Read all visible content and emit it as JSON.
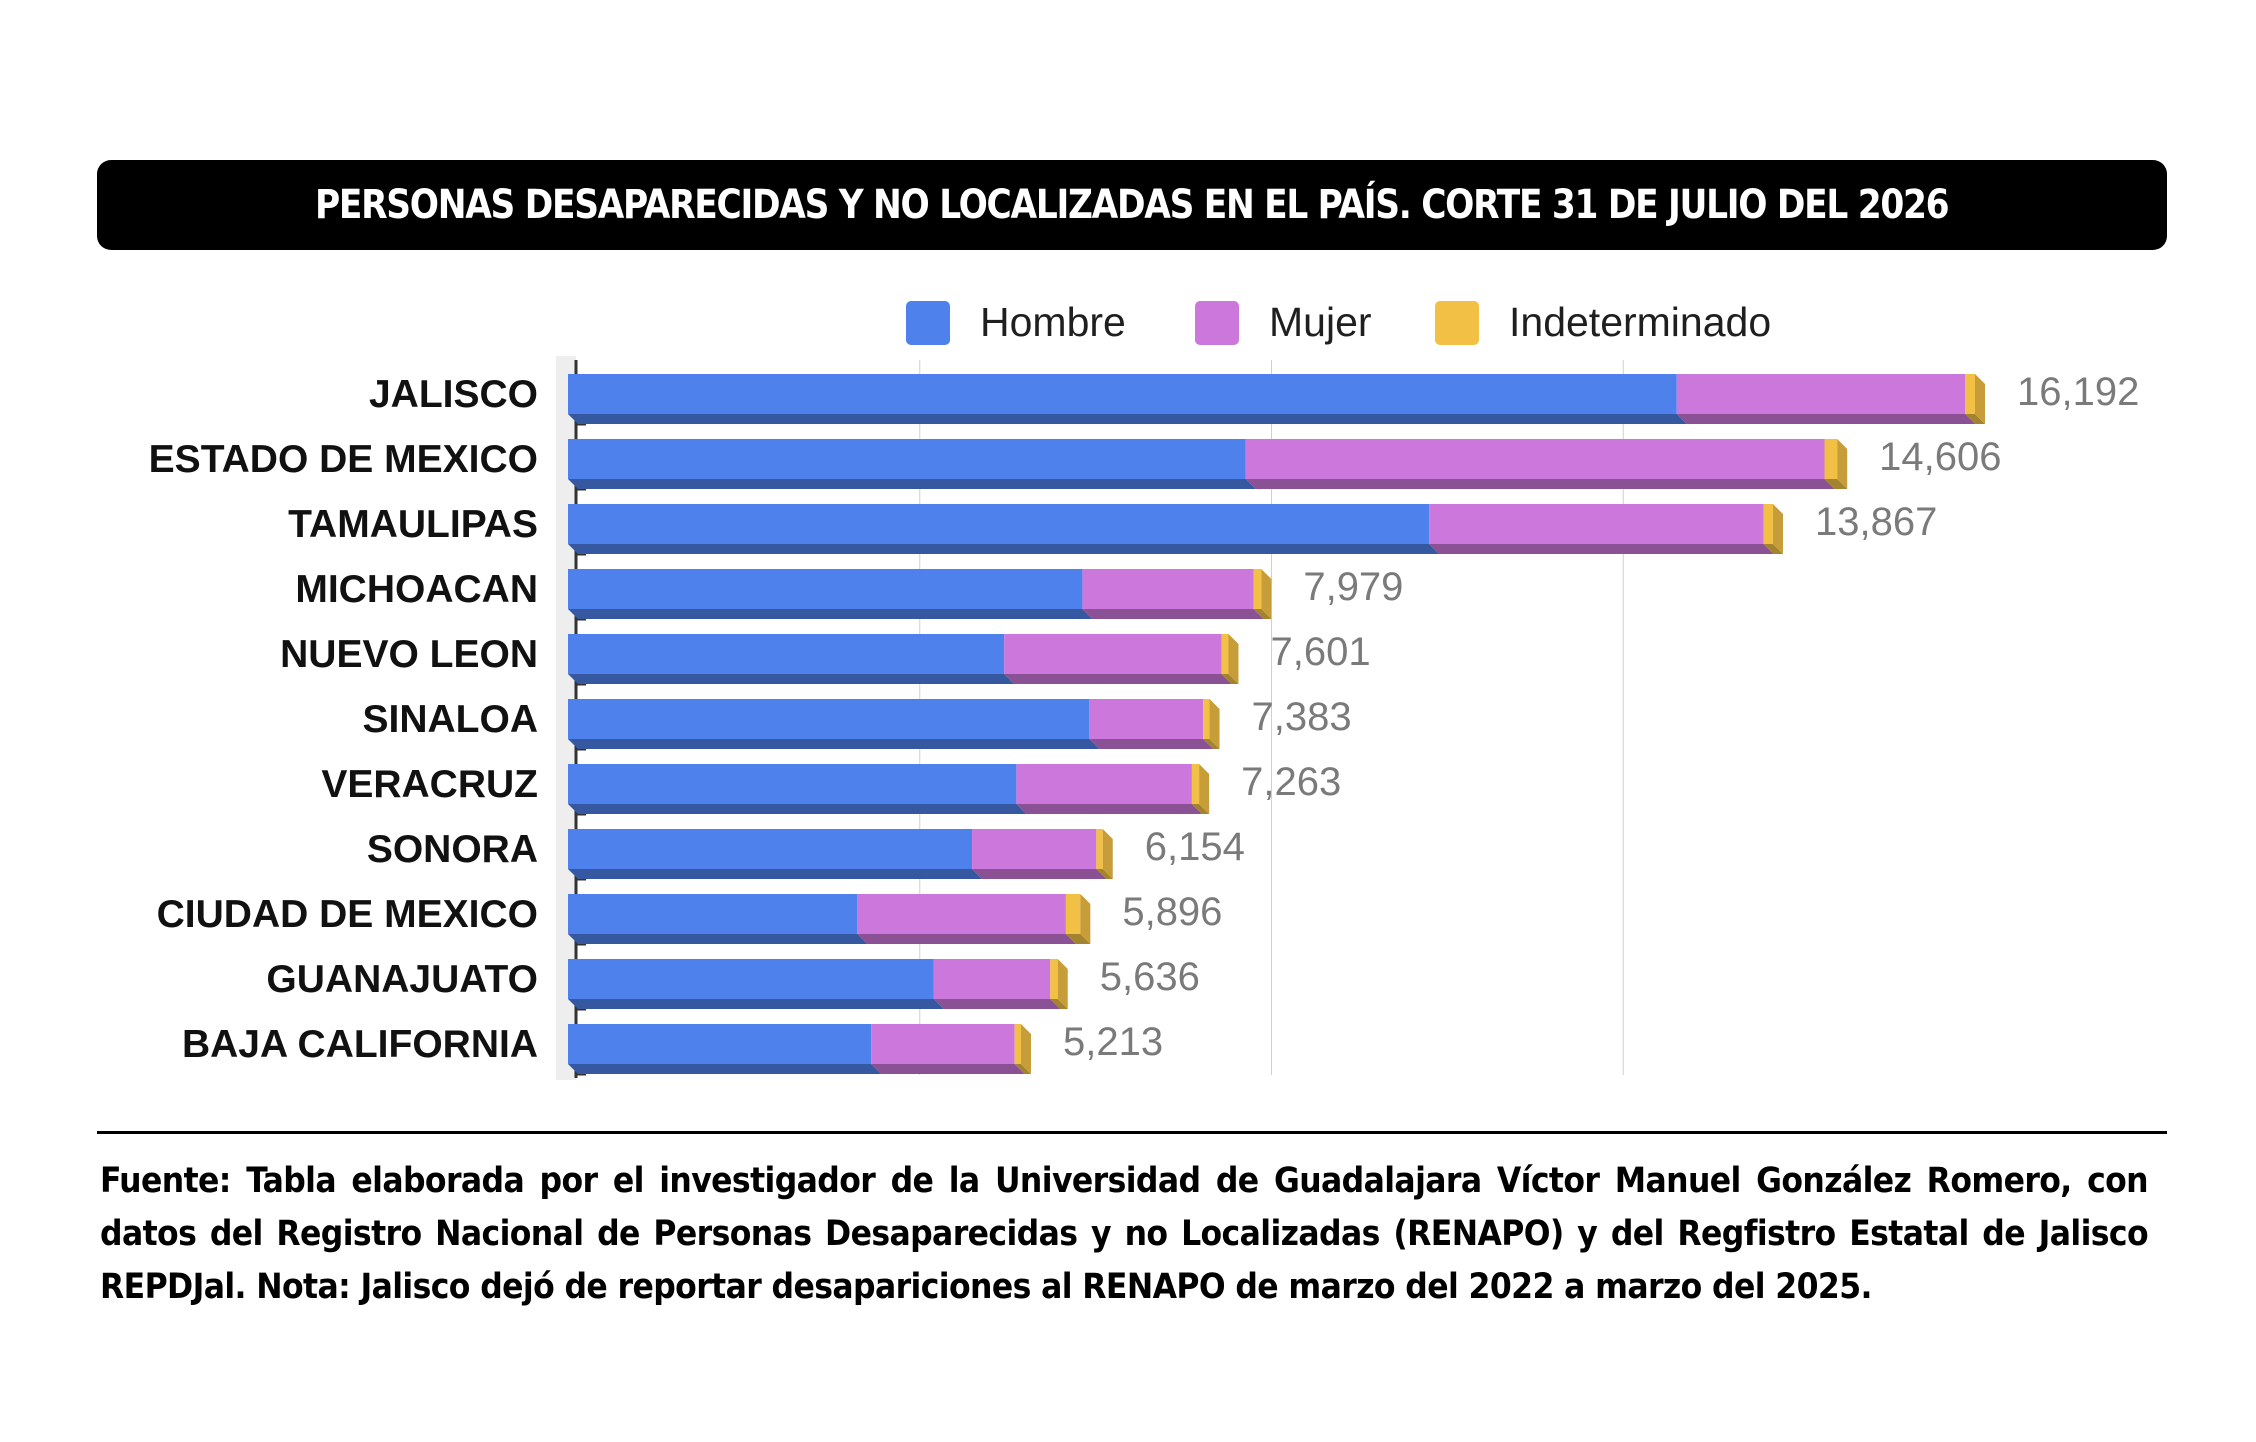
{
  "title": "PERSONAS DESAPARECIDAS Y NO LOCALIZADAS EN EL PAÍS. CORTE 31 DE JULIO DEL 2026",
  "source": "Fuente: Tabla elaborada por el investigador de la Universidad de Guadalajara Víctor Manuel González Romero, con datos del Registro Nacional de Personas Desaparecidas y no Localizadas (RENAPO) y del Regfistro Estatal de Jalisco REPDJal. Nota: Jalisco dejó de reportar desapariciones al RENAPO de marzo del 2022 a marzo del 2025.",
  "chart_data": {
    "type": "bar",
    "orientation": "horizontal",
    "stacked": true,
    "legend_position": "top",
    "categories": [
      "JALISCO",
      "ESTADO DE MEXICO",
      "TAMAULIPAS",
      "MICHOACAN",
      "NUEVO LEON",
      "SINALOA",
      "VERACRUZ",
      "SONORA",
      "CIUDAD DE MEXICO",
      "GUANAJUATO",
      "BAJA CALIFORNIA"
    ],
    "series": [
      {
        "name": "Hombre",
        "color": "#4f81ec",
        "values": [
          12760,
          7800,
          9910,
          5920,
          5020,
          6000,
          5160,
          4650,
          3330,
          4210,
          3490
        ]
      },
      {
        "name": "Mujer",
        "color": "#cc77db",
        "values": [
          3320,
          6660,
          3850,
          1970,
          2500,
          1310,
          2020,
          1430,
          2400,
          1340,
          1650
        ]
      },
      {
        "name": "Indeterminado",
        "color": "#f1c044",
        "values": [
          112,
          146,
          107,
          89,
          81,
          73,
          83,
          74,
          166,
          86,
          73
        ]
      }
    ],
    "totals": [
      "16,192",
      "14,606",
      "13,867",
      "7,979",
      "7,601",
      "7,383",
      "7,263",
      "6,154",
      "5,896",
      "5,636",
      "5,213"
    ],
    "total_values": [
      16192,
      14606,
      13867,
      7979,
      7601,
      7383,
      7263,
      6154,
      5896,
      5636,
      5213
    ],
    "xlim": [
      0,
      16192
    ],
    "grid": true
  }
}
